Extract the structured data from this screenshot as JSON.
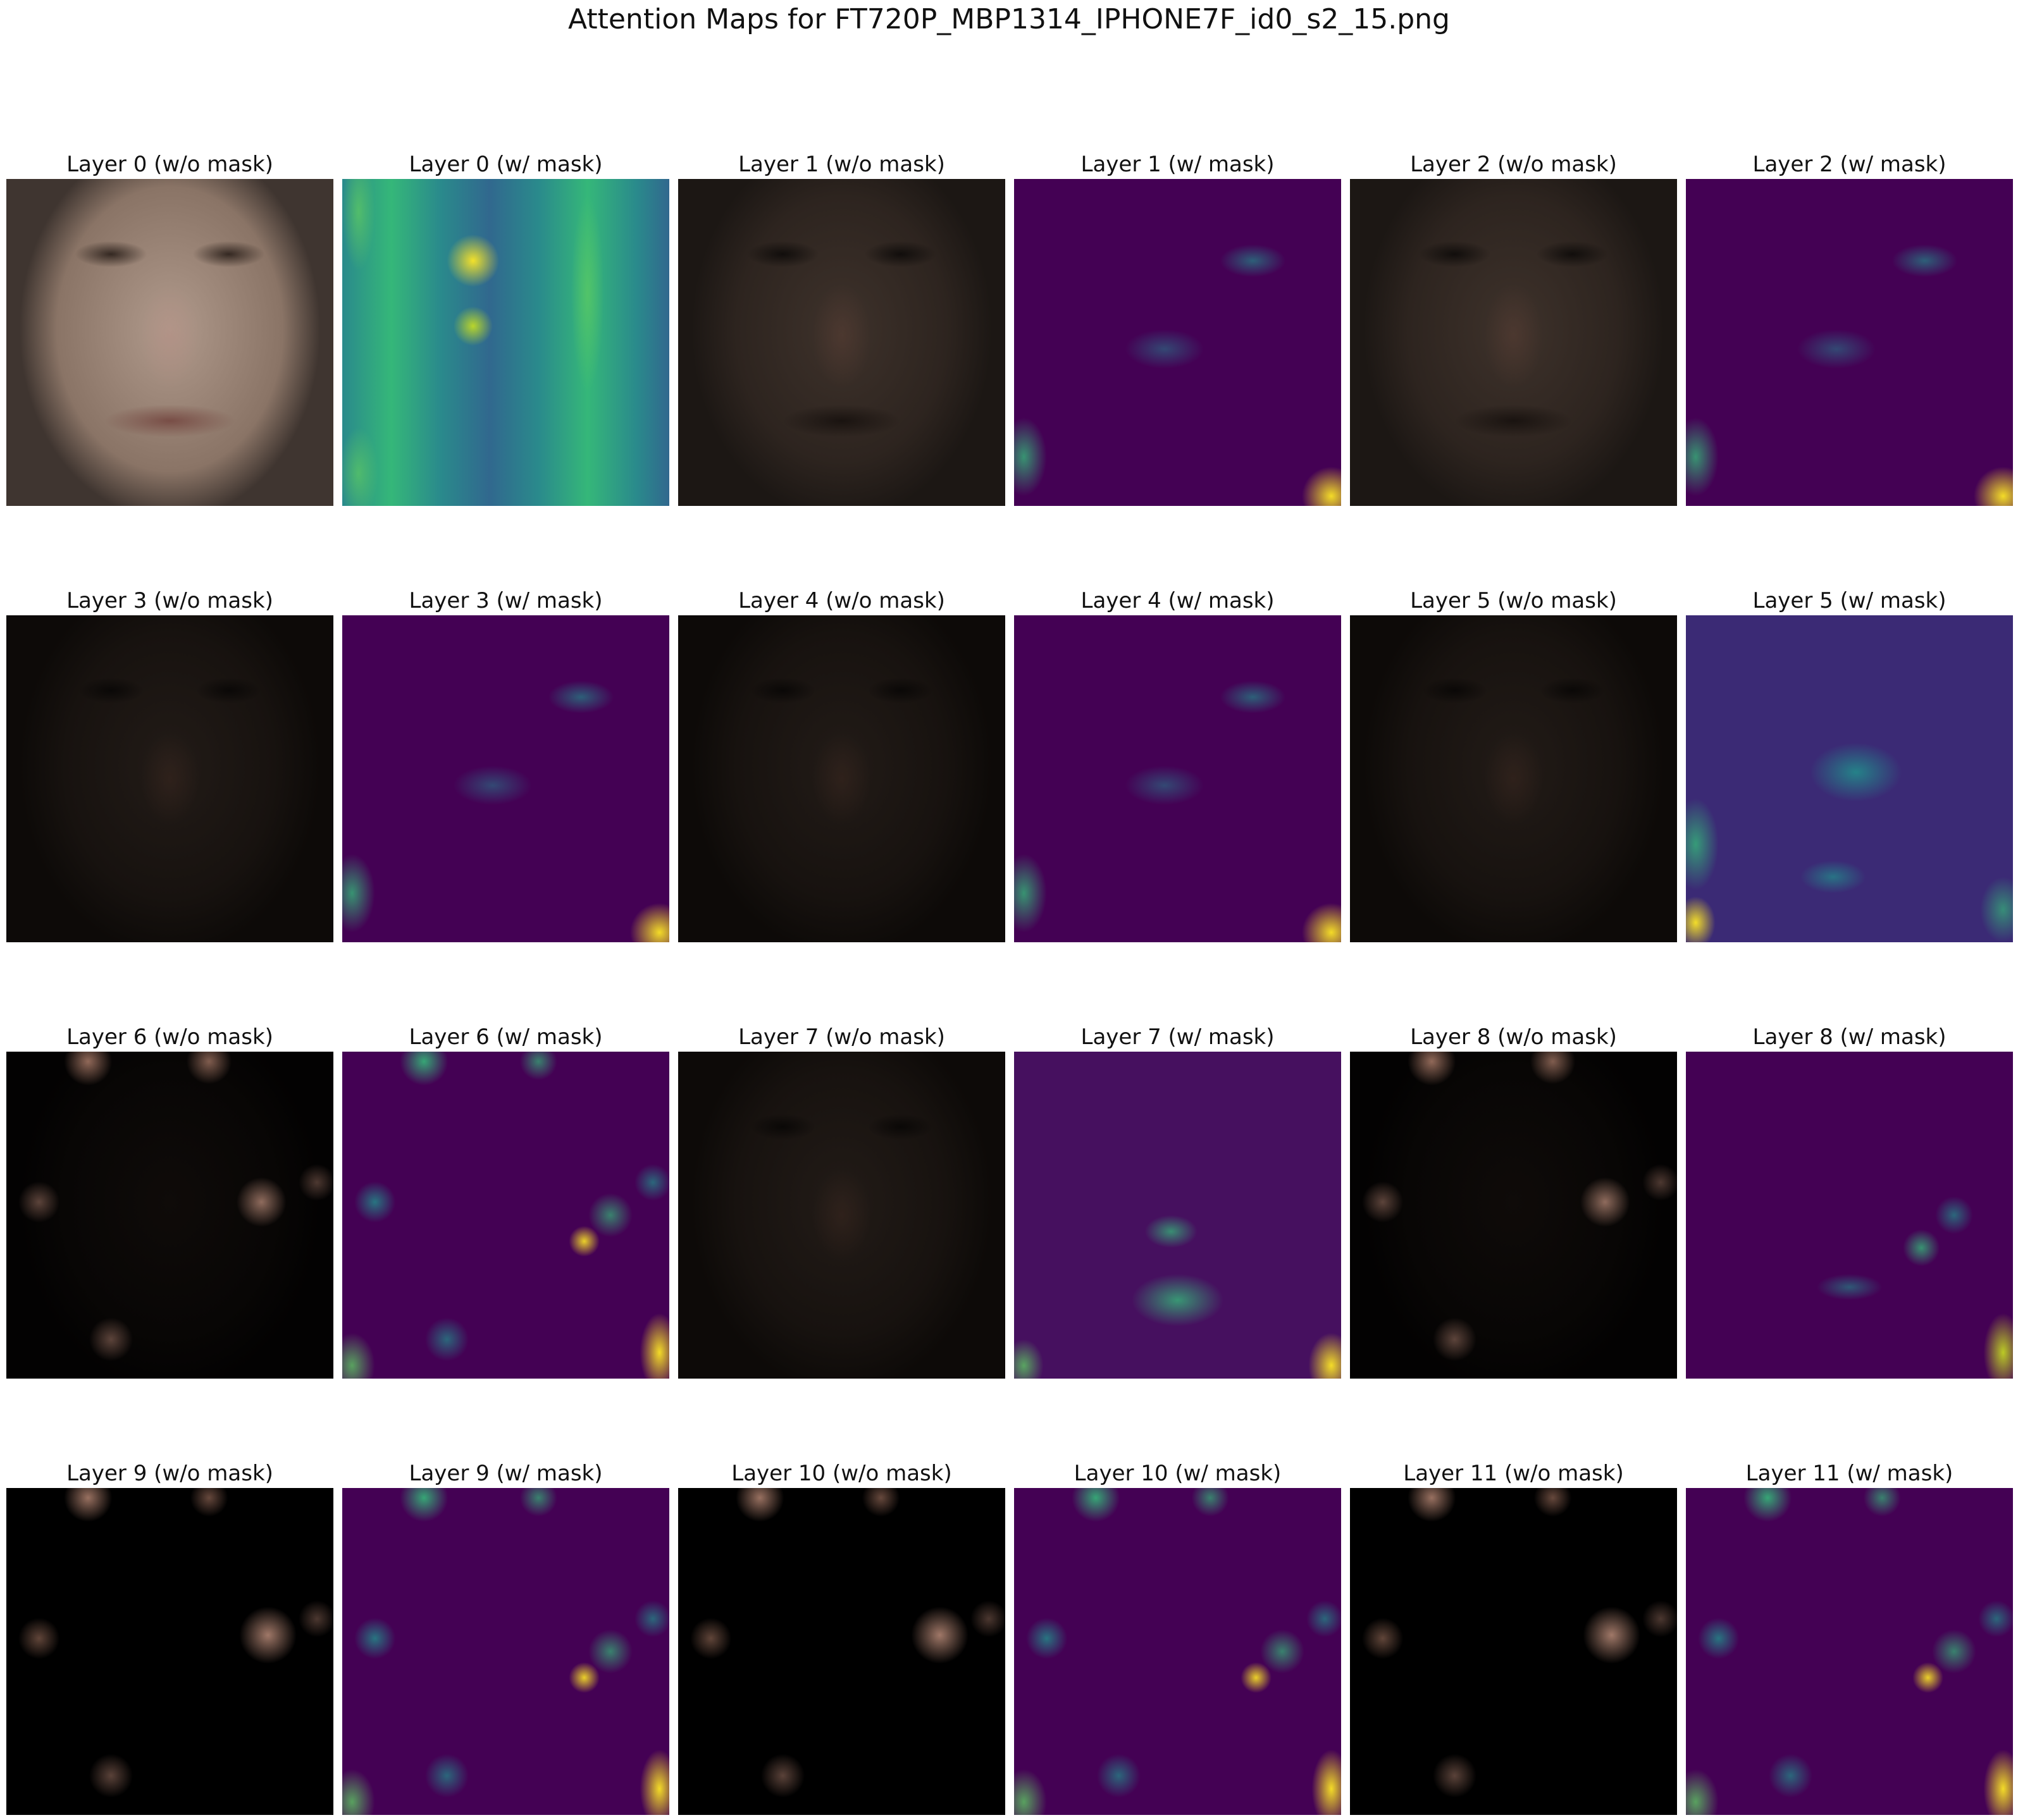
{
  "title": "Attention Maps for FT720P_MBP1314_IPHONE7F_id0_s2_15.png",
  "panels": [
    {
      "label": "Layer 0 (w/o mask)",
      "style": "face-bright"
    },
    {
      "label": "Layer 0 (w/ mask)",
      "style": "attn-row0"
    },
    {
      "label": "Layer 1 (w/o mask)",
      "style": "face-dark"
    },
    {
      "label": "Layer 1 (w/ mask)",
      "style": "attn-dim"
    },
    {
      "label": "Layer 2 (w/o mask)",
      "style": "face-dark"
    },
    {
      "label": "Layer 2 (w/ mask)",
      "style": "attn-dim"
    },
    {
      "label": "Layer 3 (w/o mask)",
      "style": "face-darker"
    },
    {
      "label": "Layer 3 (w/ mask)",
      "style": "attn-dim"
    },
    {
      "label": "Layer 4 (w/o mask)",
      "style": "face-darker"
    },
    {
      "label": "Layer 4 (w/ mask)",
      "style": "attn-dim"
    },
    {
      "label": "Layer 5 (w/o mask)",
      "style": "face-darker"
    },
    {
      "label": "Layer 5 (w/ mask)",
      "style": "attn-bright-center"
    },
    {
      "label": "Layer 6 (w/o mask)",
      "style": "face-spots"
    },
    {
      "label": "Layer 6 (w/ mask)",
      "style": "attn-spots"
    },
    {
      "label": "Layer 7 (w/o mask)",
      "style": "face-darker"
    },
    {
      "label": "Layer 7 (w/ mask)",
      "style": "attn-center-blob"
    },
    {
      "label": "Layer 8 (w/o mask)",
      "style": "face-spots"
    },
    {
      "label": "Layer 8 (w/ mask)",
      "style": "attn-sparse"
    },
    {
      "label": "Layer 9 (w/o mask)",
      "style": "face-black"
    },
    {
      "label": "Layer 9 (w/ mask)",
      "style": "attn-spots"
    },
    {
      "label": "Layer 10 (w/o mask)",
      "style": "face-black"
    },
    {
      "label": "Layer 10 (w/ mask)",
      "style": "attn-spots"
    },
    {
      "label": "Layer 11 (w/o mask)",
      "style": "face-black"
    },
    {
      "label": "Layer 11 (w/ mask)",
      "style": "attn-spots"
    }
  ]
}
